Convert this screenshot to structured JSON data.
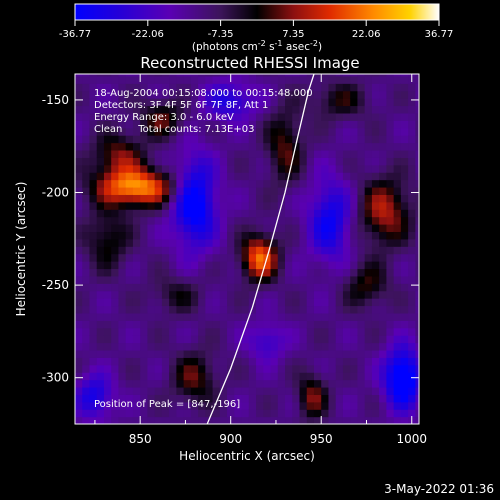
{
  "chart_data": {
    "type": "heatmap",
    "title": "Reconstructed RHESSI Image",
    "xlabel": "Heliocentric X (arcsec)",
    "ylabel": "Heliocentric Y (arcsec)",
    "xlim": [
      814,
      1004
    ],
    "ylim": [
      -325,
      -136
    ],
    "x_ticks": [
      850,
      900,
      950,
      1000
    ],
    "y_ticks": [
      -150,
      -200,
      -250,
      -300
    ],
    "colorbar": {
      "ticks": [
        "-36.77",
        "-22.06",
        "-7.35",
        "7.35",
        "22.06",
        "36.77"
      ],
      "units_html": "(photons cm<tspan dy='-4' font-size='8'>-2</tspan><tspan dy='4'> s</tspan><tspan dy='-4' font-size='8'>-1</tspan><tspan dy='4'> asec</tspan><tspan dy='-4' font-size='8'>-2</tspan><tspan dy='4'>)</tspan>",
      "range": [
        -36.77,
        36.77
      ]
    },
    "annotations": [
      "18-Aug-2004 00:15:08.000 to 00:15:48.000",
      "Detectors: 3F 4F 5F 6F 7F 8F, Att 1",
      "Energy Range: 3.0 - 6.0 keV",
      "Clean     Total counts: 7.13E+03"
    ],
    "peak_label": "Position of Peak = [847,-196]",
    "limb_curve": [
      [
        887,
        -325
      ],
      [
        900,
        -295
      ],
      [
        912,
        -262
      ],
      [
        921,
        -232
      ],
      [
        930,
        -200
      ],
      [
        937,
        -170
      ],
      [
        943,
        -145
      ],
      [
        946,
        -136
      ]
    ],
    "sources": [
      {
        "x": 848,
        "y": -197,
        "w": 22,
        "h": 10,
        "amp": 36
      },
      {
        "x": 838,
        "y": -180,
        "w": 14,
        "h": 12,
        "amp": 18
      },
      {
        "x": 832,
        "y": -225,
        "w": 12,
        "h": 16,
        "amp": 14
      },
      {
        "x": 862,
        "y": -160,
        "w": 12,
        "h": 10,
        "amp": 16
      },
      {
        "x": 916,
        "y": -235,
        "w": 10,
        "h": 12,
        "amp": 32
      },
      {
        "x": 930,
        "y": -175,
        "w": 10,
        "h": 20,
        "amp": 16
      },
      {
        "x": 985,
        "y": -210,
        "w": 14,
        "h": 18,
        "amp": 22
      },
      {
        "x": 975,
        "y": -250,
        "w": 12,
        "h": 12,
        "amp": 14
      },
      {
        "x": 960,
        "y": -150,
        "w": 16,
        "h": 10,
        "amp": 12
      },
      {
        "x": 880,
        "y": -300,
        "w": 12,
        "h": 14,
        "amp": 16
      },
      {
        "x": 945,
        "y": -310,
        "w": 8,
        "h": 12,
        "amp": 18
      },
      {
        "x": 870,
        "y": -255,
        "w": 14,
        "h": 10,
        "amp": 10
      },
      {
        "x": 880,
        "y": -205,
        "w": 12,
        "h": 24,
        "amp": -30
      },
      {
        "x": 955,
        "y": -215,
        "w": 12,
        "h": 22,
        "amp": -22
      },
      {
        "x": 900,
        "y": -150,
        "w": 14,
        "h": 10,
        "amp": -18
      },
      {
        "x": 825,
        "y": -310,
        "w": 10,
        "h": 12,
        "amp": -20
      },
      {
        "x": 995,
        "y": -300,
        "w": 10,
        "h": 16,
        "amp": -34
      },
      {
        "x": 920,
        "y": -280,
        "w": 10,
        "h": 10,
        "amp": -14
      }
    ]
  },
  "footer": {
    "date": "3-May-2022 01:36"
  }
}
